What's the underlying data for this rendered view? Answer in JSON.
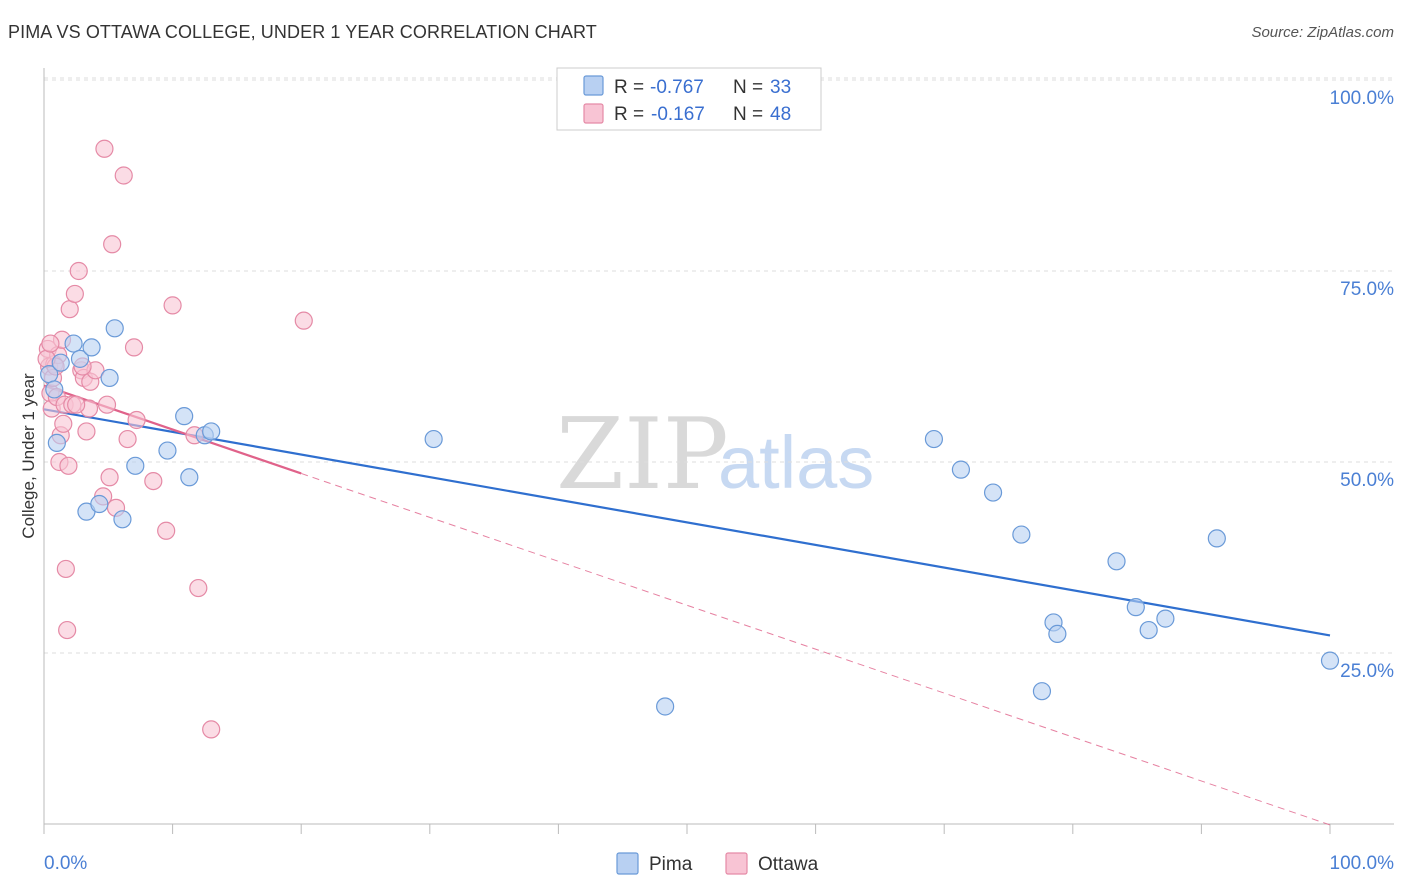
{
  "header": {
    "title": "PIMA VS OTTAWA COLLEGE, UNDER 1 YEAR CORRELATION CHART",
    "source": "Source: ZipAtlas.com"
  },
  "watermark": {
    "zip": "ZIP",
    "atlas": "atlas"
  },
  "colors": {
    "pima_fill": "#b8d0f2",
    "pima_stroke": "#6a9ad8",
    "pima_line": "#2f6fcf",
    "ottawa_fill": "#f8c4d4",
    "ottawa_stroke": "#e58aa6",
    "ottawa_line": "#e0628a",
    "grid": "#dddddd"
  },
  "legend": {
    "rows": [
      {
        "r_label": "R =",
        "r_value": "-0.767",
        "n_label": "N =",
        "n_value": "33"
      },
      {
        "r_label": "R =",
        "r_value": "-0.167",
        "n_label": "N =",
        "n_value": "48"
      }
    ]
  },
  "chart_data": {
    "type": "scatter",
    "title": "PIMA VS OTTAWA COLLEGE, UNDER 1 YEAR CORRELATION CHART",
    "xlabel": "",
    "ylabel": "College, Under 1 year",
    "xlim": [
      0,
      100
    ],
    "ylim": [
      0,
      105
    ],
    "x_tick_labels": [
      "0.0%",
      "100.0%"
    ],
    "y_ticks": [
      25,
      50,
      75,
      100
    ],
    "y_tick_labels": [
      "25.0%",
      "50.0%",
      "75.0%",
      "100.0%"
    ],
    "grid": true,
    "legend_position": "top-center",
    "series": [
      {
        "name": "Pima",
        "points": [
          [
            0.4,
            61.5
          ],
          [
            0.8,
            59.5
          ],
          [
            1.0,
            52.5
          ],
          [
            1.3,
            63.0
          ],
          [
            2.3,
            65.5
          ],
          [
            2.8,
            63.5
          ],
          [
            3.3,
            43.5
          ],
          [
            3.7,
            65.0
          ],
          [
            4.3,
            44.5
          ],
          [
            5.1,
            61.0
          ],
          [
            5.5,
            67.5
          ],
          [
            6.1,
            42.5
          ],
          [
            7.1,
            49.5
          ],
          [
            9.6,
            51.5
          ],
          [
            10.9,
            56.0
          ],
          [
            11.3,
            48.0
          ],
          [
            12.5,
            53.5
          ],
          [
            13.0,
            54.0
          ],
          [
            30.3,
            53.0
          ],
          [
            48.3,
            18.0
          ],
          [
            69.2,
            53.0
          ],
          [
            71.3,
            49.0
          ],
          [
            73.8,
            46.0
          ],
          [
            76.0,
            40.5
          ],
          [
            77.6,
            20.0
          ],
          [
            78.5,
            29.0
          ],
          [
            78.8,
            27.5
          ],
          [
            83.4,
            37.0
          ],
          [
            84.9,
            31.0
          ],
          [
            85.9,
            28.0
          ],
          [
            87.2,
            29.5
          ],
          [
            91.2,
            40.0
          ],
          [
            100.0,
            24.0
          ]
        ],
        "trend": {
          "x": [
            0,
            100
          ],
          "y": [
            56.9,
            27.3
          ]
        }
      },
      {
        "name": "Ottawa",
        "points": [
          [
            0.3,
            64.8
          ],
          [
            0.4,
            62.5
          ],
          [
            0.5,
            59.0
          ],
          [
            0.6,
            57.0
          ],
          [
            0.8,
            62.8
          ],
          [
            1.0,
            58.5
          ],
          [
            1.2,
            50.0
          ],
          [
            1.3,
            53.5
          ],
          [
            1.5,
            55.0
          ],
          [
            1.6,
            57.5
          ],
          [
            1.7,
            36.0
          ],
          [
            1.8,
            28.0
          ],
          [
            1.9,
            49.5
          ],
          [
            2.0,
            70.0
          ],
          [
            2.2,
            57.5
          ],
          [
            2.4,
            72.0
          ],
          [
            2.7,
            75.0
          ],
          [
            2.9,
            62.0
          ],
          [
            3.1,
            61.0
          ],
          [
            3.3,
            54.0
          ],
          [
            3.5,
            57.0
          ],
          [
            3.6,
            60.5
          ],
          [
            4.0,
            62.0
          ],
          [
            4.6,
            45.5
          ],
          [
            4.7,
            91.0
          ],
          [
            4.9,
            57.5
          ],
          [
            5.1,
            48.0
          ],
          [
            5.3,
            78.5
          ],
          [
            5.6,
            44.0
          ],
          [
            6.2,
            87.5
          ],
          [
            6.5,
            53.0
          ],
          [
            7.0,
            65.0
          ],
          [
            7.2,
            55.5
          ],
          [
            8.5,
            47.5
          ],
          [
            9.5,
            41.0
          ],
          [
            10.0,
            70.5
          ],
          [
            11.7,
            53.5
          ],
          [
            12.0,
            33.5
          ],
          [
            13.0,
            15.0
          ],
          [
            20.2,
            68.5
          ],
          [
            0.7,
            61.0
          ],
          [
            1.1,
            64.0
          ],
          [
            2.5,
            57.5
          ],
          [
            3.0,
            62.5
          ],
          [
            1.4,
            66.0
          ],
          [
            0.9,
            62.5
          ],
          [
            0.2,
            63.5
          ],
          [
            0.5,
            65.5
          ]
        ],
        "trend": {
          "x": [
            0,
            20
          ],
          "y": [
            60.0,
            48.5
          ]
        },
        "trend_extension": {
          "x": [
            20,
            100
          ],
          "y": [
            48.5,
            2.5
          ]
        }
      }
    ]
  },
  "bottom_legend": {
    "items": [
      {
        "label": "Pima"
      },
      {
        "label": "Ottawa"
      }
    ]
  }
}
